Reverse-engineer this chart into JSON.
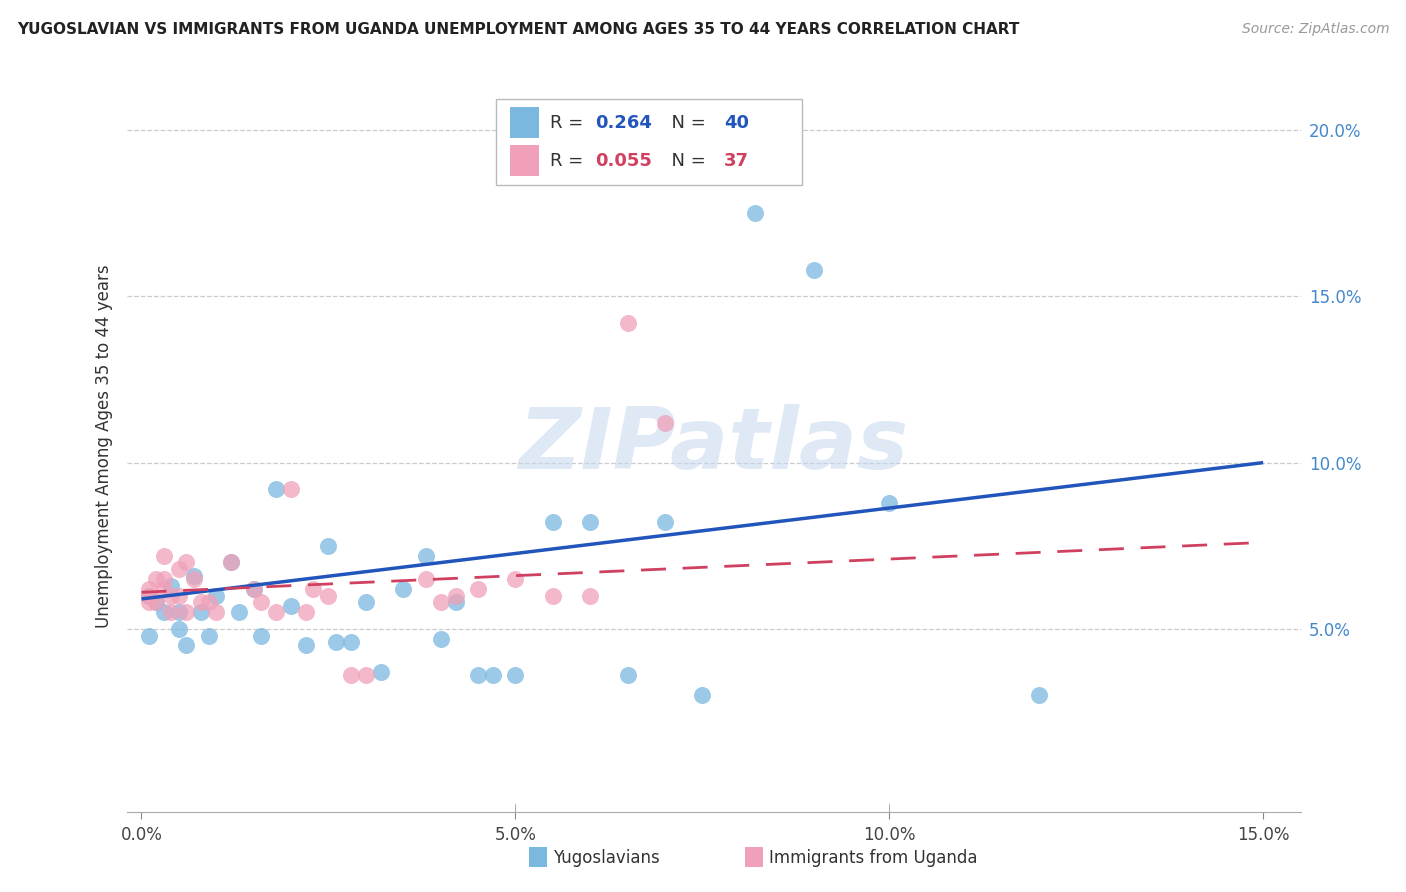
{
  "title": "YUGOSLAVIAN VS IMMIGRANTS FROM UGANDA UNEMPLOYMENT AMONG AGES 35 TO 44 YEARS CORRELATION CHART",
  "source": "Source: ZipAtlas.com",
  "ylabel": "Unemployment Among Ages 35 to 44 years",
  "xlim": [
    -0.002,
    0.155
  ],
  "ylim": [
    -0.005,
    0.215
  ],
  "xlabel_vals": [
    0.0,
    0.05,
    0.1,
    0.15
  ],
  "xlabel_labels": [
    "0.0%",
    "5.0%",
    "10.0%",
    "15.0%"
  ],
  "ylabel_vals": [
    0.05,
    0.1,
    0.15,
    0.2
  ],
  "ylabel_labels": [
    "5.0%",
    "10.0%",
    "15.0%",
    "20.0%"
  ],
  "blue_R": 0.264,
  "blue_N": 40,
  "pink_R": 0.055,
  "pink_N": 37,
  "blue_scatter_color": "#7ab8e0",
  "pink_scatter_color": "#f0a0b8",
  "blue_line_color": "#2255bb",
  "pink_line_color": "#d04060",
  "watermark": "ZIPatlas",
  "blue_trendline_start_y": 0.059,
  "blue_trendline_end_y": 0.1,
  "pink_trendline_start_y": 0.061,
  "pink_trendline_end_y": 0.076,
  "blue_x": [
    0.001,
    0.001,
    0.002,
    0.003,
    0.004,
    0.005,
    0.005,
    0.006,
    0.007,
    0.008,
    0.009,
    0.01,
    0.012,
    0.013,
    0.015,
    0.016,
    0.018,
    0.02,
    0.022,
    0.025,
    0.026,
    0.028,
    0.03,
    0.032,
    0.035,
    0.038,
    0.04,
    0.042,
    0.045,
    0.047,
    0.05,
    0.055,
    0.06,
    0.065,
    0.07,
    0.075,
    0.082,
    0.09,
    0.1,
    0.12
  ],
  "blue_y": [
    0.06,
    0.048,
    0.058,
    0.055,
    0.063,
    0.055,
    0.05,
    0.045,
    0.066,
    0.055,
    0.048,
    0.06,
    0.07,
    0.055,
    0.062,
    0.048,
    0.092,
    0.057,
    0.045,
    0.075,
    0.046,
    0.046,
    0.058,
    0.037,
    0.062,
    0.072,
    0.047,
    0.058,
    0.036,
    0.036,
    0.036,
    0.082,
    0.082,
    0.036,
    0.082,
    0.03,
    0.175,
    0.158,
    0.088,
    0.03
  ],
  "pink_x": [
    0.001,
    0.001,
    0.001,
    0.002,
    0.002,
    0.003,
    0.003,
    0.003,
    0.004,
    0.004,
    0.005,
    0.005,
    0.006,
    0.006,
    0.007,
    0.008,
    0.009,
    0.01,
    0.012,
    0.015,
    0.016,
    0.018,
    0.02,
    0.022,
    0.023,
    0.025,
    0.028,
    0.03,
    0.038,
    0.04,
    0.042,
    0.045,
    0.05,
    0.055,
    0.06,
    0.065,
    0.07
  ],
  "pink_y": [
    0.06,
    0.062,
    0.058,
    0.065,
    0.058,
    0.062,
    0.065,
    0.072,
    0.055,
    0.06,
    0.068,
    0.06,
    0.055,
    0.07,
    0.065,
    0.058,
    0.058,
    0.055,
    0.07,
    0.062,
    0.058,
    0.055,
    0.092,
    0.055,
    0.062,
    0.06,
    0.036,
    0.036,
    0.065,
    0.058,
    0.06,
    0.062,
    0.065,
    0.06,
    0.06,
    0.142,
    0.112
  ]
}
